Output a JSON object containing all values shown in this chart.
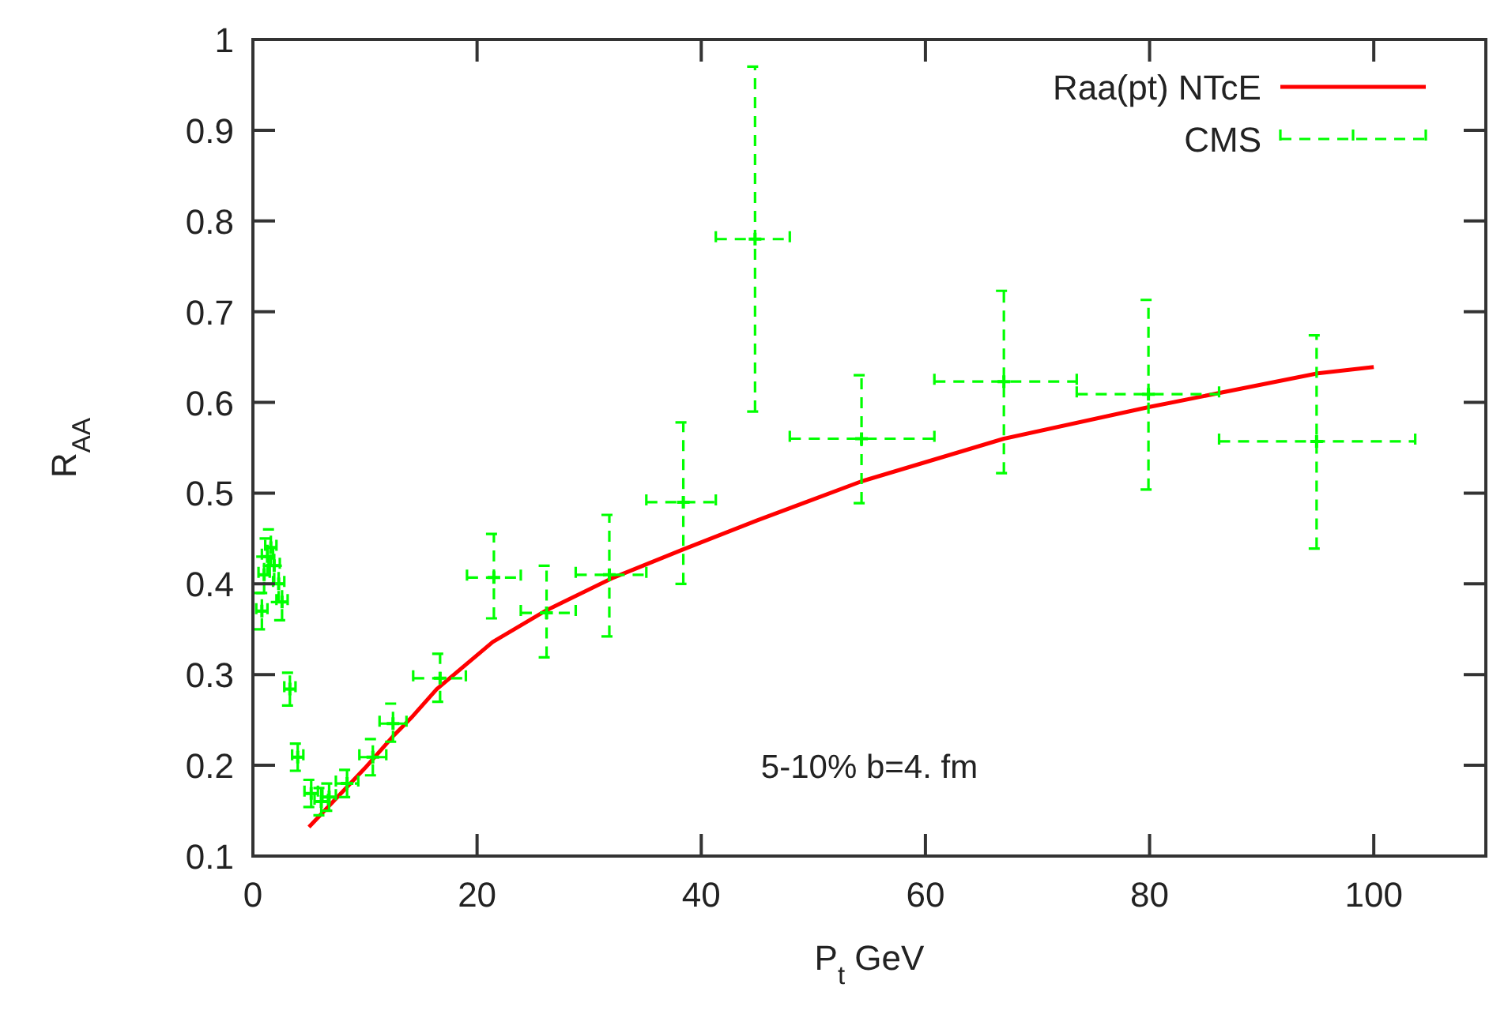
{
  "chart_data": {
    "type": "scatter",
    "xlabel": "P$_{t}$ GeV",
    "ylabel": "R$_{AA}$",
    "xlim": [
      0,
      110
    ],
    "ylim": [
      0.1,
      1
    ],
    "xticks": [
      0,
      20,
      40,
      60,
      80,
      100
    ],
    "yticks": [
      {
        "value": 0.1,
        "label": "0.1"
      },
      {
        "value": 0.2,
        "label": "0.2"
      },
      {
        "value": 0.3,
        "label": "0.3"
      },
      {
        "value": 0.4,
        "label": "0.4"
      },
      {
        "value": 0.5,
        "label": "0.5"
      },
      {
        "value": 0.6,
        "label": "0.6"
      },
      {
        "value": 0.7,
        "label": "0.7"
      },
      {
        "value": 0.8,
        "label": "0.8"
      },
      {
        "value": 0.9,
        "label": "0.9"
      },
      {
        "value": 1,
        "label": "1"
      }
    ],
    "grid": false,
    "legend": "top right",
    "annotations": [
      "5-10% b=4. fm"
    ],
    "series": [
      {
        "name": "Raa(pt) NTcE",
        "type": "line",
        "color": "#ff0000",
        "line_style": "solid",
        "x": [
          5,
          8,
          10,
          12.5,
          14.1,
          16.4,
          21.4,
          26.2,
          32,
          38.4,
          45,
          54.3,
          67,
          80,
          95,
          100
        ],
        "values": [
          0.132,
          0.171,
          0.197,
          0.232,
          0.252,
          0.284,
          0.336,
          0.371,
          0.406,
          0.438,
          0.47,
          0.513,
          0.56,
          0.595,
          0.632,
          0.639
        ]
      },
      {
        "name": "CMS",
        "color": "#00ff00",
        "line_style": "dashed",
        "marker": "cross",
        "x": [
          0.8,
          1.0,
          1.3,
          1.6,
          1.9,
          2.3,
          2.6,
          3.3,
          4.0,
          5.2,
          6.1,
          6.8,
          8.4,
          10.7,
          12.5,
          16.7,
          21.5,
          26.2,
          31.8,
          38.4,
          44.8,
          54.3,
          67,
          79.9,
          94.9
        ],
        "values": [
          0.37,
          0.41,
          0.43,
          0.44,
          0.42,
          0.4,
          0.38,
          0.284,
          0.209,
          0.169,
          0.16,
          0.165,
          0.18,
          0.209,
          0.246,
          0.296,
          0.407,
          0.368,
          0.41,
          0.49,
          0.78,
          0.56,
          0.623,
          0.609,
          0.557
        ],
        "errors": [
          0.02,
          0.02,
          0.02,
          0.02,
          0.02,
          0.02,
          0.02,
          0.018,
          0.015,
          0.015,
          0.015,
          0.015,
          0.015,
          0.02,
          [
            0.226,
            0.268
          ],
          [
            0.27,
            0.323
          ],
          [
            0.362,
            0.455
          ],
          [
            0.319,
            0.42
          ],
          [
            0.342,
            0.476
          ],
          [
            0.4,
            0.578
          ],
          [
            0.59,
            0.97
          ],
          [
            0.489,
            0.63
          ],
          [
            0.522,
            0.723
          ],
          [
            0.504,
            0.713
          ],
          [
            0.439,
            0.674
          ]
        ],
        "xerrors": [
          0.5,
          0.5,
          0.5,
          0.5,
          0.5,
          0.5,
          0.5,
          0.5,
          0.5,
          0.6,
          0.6,
          0.6,
          1,
          1.2,
          1.2,
          [
            14.3,
            19.0
          ],
          [
            19.1,
            23.9
          ],
          [
            23.9,
            28.8
          ],
          [
            28.8,
            35.1
          ],
          [
            35.1,
            41.3
          ],
          [
            41.3,
            47.9
          ],
          [
            47.9,
            60.8
          ],
          [
            60.8,
            73.5
          ],
          [
            73.5,
            86.2
          ],
          [
            86.2,
            103.7
          ]
        ]
      }
    ]
  }
}
